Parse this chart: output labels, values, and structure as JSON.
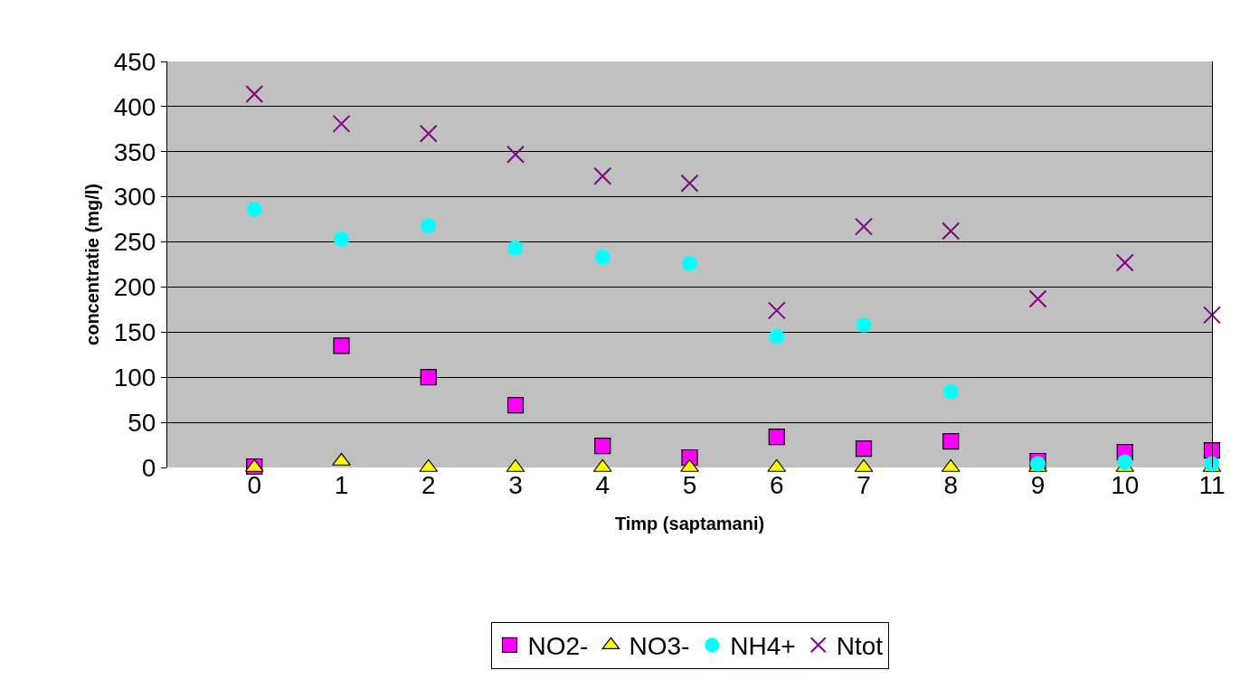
{
  "chart_data": {
    "type": "scatter",
    "xlabel": "Timp (saptamani)",
    "ylabel": "concentratie (mg/l)",
    "x": [
      0,
      1,
      2,
      3,
      4,
      5,
      6,
      7,
      8,
      9,
      10,
      11
    ],
    "xlim": [
      -1,
      11
    ],
    "xticks": [
      0,
      1,
      2,
      3,
      4,
      5,
      6,
      7,
      8,
      9,
      10,
      11
    ],
    "ylim": [
      0,
      450
    ],
    "yticks": [
      0,
      50,
      100,
      150,
      200,
      250,
      300,
      350,
      400,
      450
    ],
    "grid": "y",
    "legend": "bottom",
    "series": [
      {
        "name": "NO2-",
        "color": "#ff00ff",
        "marker": "square",
        "values": [
          1,
          135,
          100,
          69,
          24,
          11,
          34,
          21,
          29,
          7,
          17,
          19
        ]
      },
      {
        "name": "NO3-",
        "color": "#ffff00",
        "marker": "triangle",
        "values": [
          0,
          7,
          0,
          0,
          0,
          0,
          0,
          0,
          0,
          0,
          0,
          0
        ]
      },
      {
        "name": "NH4+",
        "color": "#00ffff",
        "marker": "circle",
        "values": [
          286,
          253,
          268,
          243,
          233,
          226,
          145,
          158,
          84,
          4,
          6,
          4
        ]
      },
      {
        "name": "Ntot",
        "color": "#800080",
        "marker": "cross",
        "values": [
          414,
          381,
          370,
          347,
          323,
          315,
          174,
          267,
          262,
          187,
          227,
          169
        ]
      }
    ]
  }
}
